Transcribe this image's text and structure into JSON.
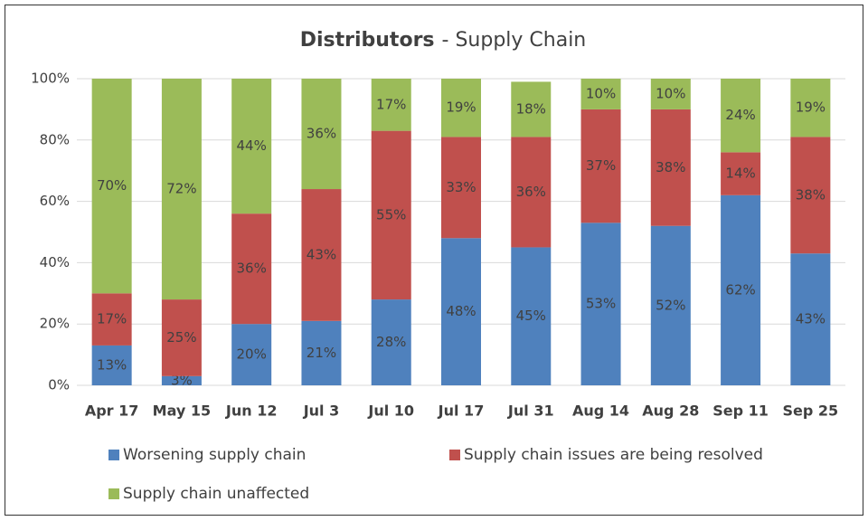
{
  "chart_data": {
    "type": "stacked_bar",
    "title": {
      "main": "Distributors",
      "sub": "-  Supply Chain"
    },
    "categories": [
      "Apr 17",
      "May 15",
      "Jun 12",
      "Jul 3",
      "Jul 10",
      "Jul 17",
      "Jul 31",
      "Aug 14",
      "Aug 28",
      "Sep 11",
      "Sep 25"
    ],
    "series": [
      {
        "name": "Worsening supply chain",
        "color": "#4f81bd",
        "values": [
          13,
          3,
          20,
          21,
          28,
          48,
          45,
          53,
          52,
          62,
          43
        ],
        "value_labels": [
          "13%",
          "3%",
          "20%",
          "21%",
          "28%",
          "48%",
          "45%",
          "53%",
          "52%",
          "62%",
          "43%"
        ]
      },
      {
        "name": "Supply chain issues are being resolved",
        "color": "#c0504d",
        "values": [
          17,
          25,
          36,
          43,
          55,
          33,
          36,
          37,
          38,
          14,
          38
        ],
        "value_labels": [
          "17%",
          "25%",
          "36%",
          "43%",
          "55%",
          "33%",
          "36%",
          "37%",
          "38%",
          "14%",
          "38%"
        ]
      },
      {
        "name": "Supply chain unaffected",
        "color": "#9bbb59",
        "values": [
          70,
          72,
          44,
          36,
          17,
          19,
          18,
          10,
          10,
          24,
          19
        ],
        "value_labels": [
          "70%",
          "72%",
          "44%",
          "36%",
          "17%",
          "19%",
          "18%",
          "10%",
          "10%",
          "24%",
          "19%"
        ]
      }
    ],
    "ylim": [
      0,
      100
    ],
    "yticks": [
      {
        "value": 0,
        "label": "0%"
      },
      {
        "value": 20,
        "label": "20%"
      },
      {
        "value": 40,
        "label": "40%"
      },
      {
        "value": 60,
        "label": "60%"
      },
      {
        "value": 80,
        "label": "80%"
      },
      {
        "value": 100,
        "label": "100%"
      }
    ],
    "grid": true,
    "legend": "bottom"
  }
}
